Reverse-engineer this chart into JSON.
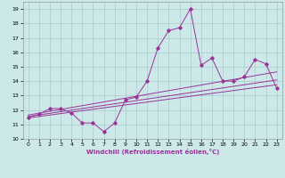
{
  "x": [
    0,
    1,
    2,
    3,
    4,
    5,
    6,
    7,
    8,
    9,
    10,
    11,
    12,
    13,
    14,
    15,
    16,
    17,
    18,
    19,
    20,
    21,
    22,
    23
  ],
  "line1": [
    11.5,
    11.7,
    12.1,
    12.1,
    11.8,
    11.1,
    11.1,
    10.5,
    11.1,
    12.7,
    12.9,
    14.0,
    16.3,
    17.5,
    17.7,
    19.0,
    15.1,
    15.6,
    14.0,
    14.0,
    14.3,
    15.5,
    15.2,
    13.5
  ],
  "trend1": [
    11.65,
    11.78,
    11.91,
    12.04,
    12.17,
    12.3,
    12.43,
    12.56,
    12.69,
    12.82,
    12.95,
    13.08,
    13.21,
    13.34,
    13.47,
    13.6,
    13.73,
    13.86,
    13.99,
    14.12,
    14.25,
    14.38,
    14.51,
    14.64
  ],
  "trend2": [
    11.55,
    11.66,
    11.77,
    11.88,
    11.99,
    12.1,
    12.21,
    12.32,
    12.43,
    12.54,
    12.65,
    12.76,
    12.87,
    12.98,
    13.09,
    13.2,
    13.31,
    13.42,
    13.53,
    13.64,
    13.75,
    13.86,
    13.97,
    14.08
  ],
  "trend3": [
    11.45,
    11.55,
    11.65,
    11.75,
    11.85,
    11.95,
    12.05,
    12.15,
    12.25,
    12.35,
    12.45,
    12.55,
    12.65,
    12.75,
    12.85,
    12.95,
    13.05,
    13.15,
    13.25,
    13.35,
    13.45,
    13.55,
    13.65,
    13.75
  ],
  "line_color": "#993399",
  "bg_color": "#cce8e8",
  "grid_color": "#aacccc",
  "xlabel": "Windchill (Refroidissement éolien,°C)",
  "ylim": [
    10,
    19.5
  ],
  "xlim": [
    -0.5,
    23.5
  ],
  "yticks": [
    10,
    11,
    12,
    13,
    14,
    15,
    16,
    17,
    18,
    19
  ],
  "xticks": [
    0,
    1,
    2,
    3,
    4,
    5,
    6,
    7,
    8,
    9,
    10,
    11,
    12,
    13,
    14,
    15,
    16,
    17,
    18,
    19,
    20,
    21,
    22,
    23
  ]
}
